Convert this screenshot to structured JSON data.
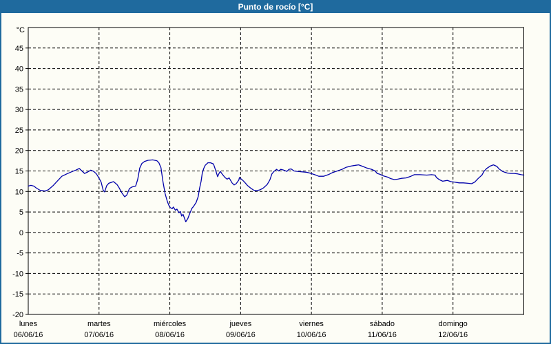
{
  "window": {
    "title": "Punto de rocío [°C]"
  },
  "colors": {
    "titlebar_bg": "#1f6a9e",
    "titlebar_text": "#ffffff",
    "frame_border": "#1f6a9e",
    "content_bg": "#fdfdf6",
    "axis": "#000000",
    "grid": "#000000",
    "tick_text": "#000000",
    "line": "#0000aa"
  },
  "chart_data": {
    "type": "line",
    "title": "Punto de rocío [°C]",
    "ylabel_unit": "°C",
    "ylim": [
      -20,
      50
    ],
    "xlim_hours": [
      0,
      168
    ],
    "grid": "dashed",
    "legend": "none",
    "y_ticks": [
      45,
      40,
      35,
      30,
      25,
      20,
      15,
      10,
      5,
      0,
      -5,
      -10,
      -15,
      -20
    ],
    "x_ticks": [
      {
        "label": "lunes",
        "date": "06/06/16",
        "hour": 0
      },
      {
        "label": "martes",
        "date": "07/06/16",
        "hour": 24
      },
      {
        "label": "miércoles",
        "date": "08/06/16",
        "hour": 48
      },
      {
        "label": "jueves",
        "date": "09/06/16",
        "hour": 72
      },
      {
        "label": "viernes",
        "date": "10/06/16",
        "hour": 96
      },
      {
        "label": "sábado",
        "date": "11/06/16",
        "hour": 120
      },
      {
        "label": "domingo",
        "date": "12/06/16",
        "hour": 144
      }
    ],
    "series": [
      {
        "name": "Punto de rocío",
        "color": "#0000aa",
        "points": [
          [
            0,
            11.3
          ],
          [
            0.9,
            11.5
          ],
          [
            1.9,
            11.3
          ],
          [
            2.8,
            10.8
          ],
          [
            4,
            10.3
          ],
          [
            5.6,
            10.1
          ],
          [
            6.8,
            10.4
          ],
          [
            8.4,
            11.4
          ],
          [
            9.8,
            12.5
          ],
          [
            11.4,
            13.7
          ],
          [
            13.1,
            14.3
          ],
          [
            14.7,
            14.8
          ],
          [
            16.1,
            15.2
          ],
          [
            17.3,
            15.6
          ],
          [
            18.2,
            15.0
          ],
          [
            19.1,
            14.4
          ],
          [
            20.3,
            14.8
          ],
          [
            21.2,
            15.2
          ],
          [
            22.2,
            14.9
          ],
          [
            23.1,
            14.3
          ],
          [
            23.8,
            13.5
          ],
          [
            24.7,
            12.3
          ],
          [
            25.4,
            10.3
          ],
          [
            25.9,
            9.9
          ],
          [
            26.6,
            11.4
          ],
          [
            27.3,
            12.0
          ],
          [
            28.9,
            12.4
          ],
          [
            30.1,
            11.7
          ],
          [
            30.8,
            10.9
          ],
          [
            31.7,
            9.7
          ],
          [
            32.7,
            8.7
          ],
          [
            33.4,
            9.1
          ],
          [
            34.3,
            10.7
          ],
          [
            35.2,
            11.1
          ],
          [
            36.4,
            11.3
          ],
          [
            37.1,
            12.9
          ],
          [
            37.8,
            15.7
          ],
          [
            38.5,
            16.8
          ],
          [
            39.4,
            17.3
          ],
          [
            40.6,
            17.6
          ],
          [
            42.2,
            17.7
          ],
          [
            43.6,
            17.5
          ],
          [
            44.3,
            17.0
          ],
          [
            45,
            15.8
          ],
          [
            45.7,
            12.3
          ],
          [
            46.4,
            9.5
          ],
          [
            47.1,
            7.7
          ],
          [
            47.6,
            6.7
          ],
          [
            48.1,
            6.1
          ],
          [
            48.8,
            5.8
          ],
          [
            49.2,
            6.2
          ],
          [
            49.9,
            5.4
          ],
          [
            50.4,
            5.7
          ],
          [
            51.1,
            4.8
          ],
          [
            51.6,
            5.1
          ],
          [
            52,
            4.0
          ],
          [
            52.5,
            4.4
          ],
          [
            53,
            3.4
          ],
          [
            53.4,
            2.6
          ],
          [
            54.1,
            3.4
          ],
          [
            54.8,
            4.7
          ],
          [
            55.5,
            5.9
          ],
          [
            56,
            6.3
          ],
          [
            56.9,
            7.3
          ],
          [
            57.6,
            8.7
          ],
          [
            58.1,
            10.8
          ],
          [
            58.6,
            12.5
          ],
          [
            59,
            14.5
          ],
          [
            59.5,
            15.6
          ],
          [
            60,
            16.4
          ],
          [
            60.9,
            17.0
          ],
          [
            61.8,
            17.0
          ],
          [
            62.8,
            16.7
          ],
          [
            63.5,
            15.2
          ],
          [
            64.2,
            13.6
          ],
          [
            64.6,
            14.3
          ],
          [
            65.1,
            14.9
          ],
          [
            65.8,
            14.2
          ],
          [
            66.7,
            13.4
          ],
          [
            67.4,
            13.0
          ],
          [
            68.1,
            13.3
          ],
          [
            69.1,
            12.1
          ],
          [
            69.8,
            11.6
          ],
          [
            70.5,
            11.9
          ],
          [
            71.4,
            12.8
          ],
          [
            71.6,
            13.4
          ],
          [
            72.6,
            12.8
          ],
          [
            73.3,
            12.3
          ],
          [
            74.4,
            11.4
          ],
          [
            75.6,
            10.7
          ],
          [
            76.5,
            10.3
          ],
          [
            77.5,
            10.2
          ],
          [
            78.6,
            10.4
          ],
          [
            79.8,
            10.9
          ],
          [
            81,
            11.7
          ],
          [
            81.9,
            12.8
          ],
          [
            82.6,
            14.3
          ],
          [
            83.3,
            14.9
          ],
          [
            84.2,
            15.4
          ],
          [
            84.9,
            15.0
          ],
          [
            85.6,
            15.4
          ],
          [
            86.6,
            15.2
          ],
          [
            87.7,
            14.9
          ],
          [
            88.4,
            15.4
          ],
          [
            89.1,
            15.5
          ],
          [
            90.1,
            15.0
          ],
          [
            91.2,
            14.9
          ],
          [
            92.6,
            14.8
          ],
          [
            94.3,
            14.7
          ],
          [
            95.4,
            14.5
          ],
          [
            97.1,
            14.1
          ],
          [
            98.5,
            13.7
          ],
          [
            100.1,
            13.7
          ],
          [
            101.7,
            14.1
          ],
          [
            103.1,
            14.6
          ],
          [
            104.8,
            15.0
          ],
          [
            106.4,
            15.4
          ],
          [
            107.8,
            15.9
          ],
          [
            109.4,
            16.2
          ],
          [
            111.1,
            16.4
          ],
          [
            112,
            16.5
          ],
          [
            113.4,
            16.1
          ],
          [
            114.8,
            15.7
          ],
          [
            116.4,
            15.4
          ],
          [
            117.6,
            15.0
          ],
          [
            118.3,
            14.4
          ],
          [
            119.2,
            14.2
          ],
          [
            120.4,
            13.8
          ],
          [
            121.8,
            13.5
          ],
          [
            123,
            13.1
          ],
          [
            124.1,
            12.9
          ],
          [
            125.3,
            13.0
          ],
          [
            126.5,
            13.2
          ],
          [
            128.1,
            13.3
          ],
          [
            129.7,
            13.7
          ],
          [
            130.9,
            14.1
          ],
          [
            132.8,
            14.1
          ],
          [
            135.1,
            14.0
          ],
          [
            136.7,
            14.1
          ],
          [
            137.9,
            14.0
          ],
          [
            138.4,
            13.4
          ],
          [
            139.3,
            12.9
          ],
          [
            140.5,
            12.5
          ],
          [
            142.1,
            12.7
          ],
          [
            143.3,
            12.4
          ],
          [
            144.4,
            12.3
          ],
          [
            146.1,
            12.1
          ],
          [
            147.5,
            12.1
          ],
          [
            149.1,
            12.0
          ],
          [
            150.3,
            11.9
          ],
          [
            151.4,
            12.3
          ],
          [
            152.6,
            13.2
          ],
          [
            153.8,
            14.0
          ],
          [
            154.5,
            14.9
          ],
          [
            155.4,
            15.6
          ],
          [
            156.6,
            16.2
          ],
          [
            157.7,
            16.5
          ],
          [
            158.9,
            16.1
          ],
          [
            159.6,
            15.5
          ],
          [
            160.8,
            14.9
          ],
          [
            161.5,
            14.7
          ],
          [
            162.4,
            14.5
          ],
          [
            163.6,
            14.4
          ],
          [
            164.7,
            14.4
          ],
          [
            165.9,
            14.3
          ],
          [
            167.1,
            14.1
          ],
          [
            168,
            14.0
          ]
        ]
      }
    ]
  }
}
